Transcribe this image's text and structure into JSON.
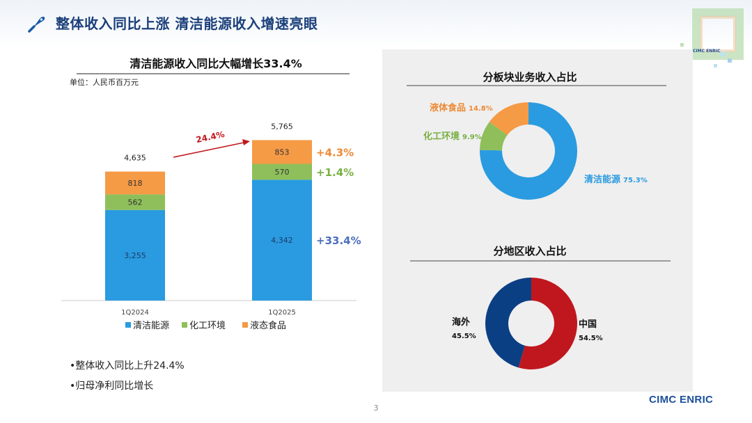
{
  "title": "整体收入同比上涨  清洁能源收入增速亮眼",
  "icons": {
    "title": "pen-nib-icon",
    "decoration": "abstract-square-decoration"
  },
  "colors": {
    "clean_energy": "#2a9be0",
    "chemical": "#8fbf5a",
    "liquid_food": "#f59a45",
    "china": "#c0171e",
    "overseas": "#0b3f84",
    "title": "#1b3f7a",
    "growth_blue": "#4a6fbe"
  },
  "decoration_text": "CIMC ENRIC",
  "bar_chart": {
    "title": "清洁能源收入同比大幅增长33.4%",
    "unit": "单位：人民币百万元",
    "growth_label": "24.4%",
    "chart_data": {
      "type": "stacked-bar",
      "categories": [
        "1Q2024",
        "1Q2025"
      ],
      "totals": [
        "4,635",
        "5,765"
      ],
      "series": [
        {
          "name": "清洁能源",
          "color": "#2a9be0",
          "values": [
            3255,
            4342
          ],
          "labels": [
            "3,255",
            "4,342"
          ],
          "growth": "+33.4%",
          "growth_color": "#4a6fbe"
        },
        {
          "name": "化工环境",
          "color": "#8fbf5a",
          "values": [
            562,
            570
          ],
          "labels": [
            "562",
            "570"
          ],
          "growth": "+1.4%",
          "growth_color": "#79b043"
        },
        {
          "name": "液态食品",
          "color": "#f59a45",
          "values": [
            818,
            853
          ],
          "labels": [
            "818",
            "853"
          ],
          "growth": "+4.3%",
          "growth_color": "#ed8a35"
        }
      ],
      "legend_position": "bottom"
    }
  },
  "bullets": [
    "•整体收入同比上升24.4%",
    "•归母净利同比增长"
  ],
  "segment_chart": {
    "title": "分板块业务收入占比",
    "chart_data": {
      "type": "donut",
      "slices": [
        {
          "name": "清洁能源",
          "value": 75.3,
          "label": "75.3%",
          "color": "#2a9be0"
        },
        {
          "name": "化工环境",
          "value": 9.9,
          "label": "9.9%",
          "color": "#8fbf5a"
        },
        {
          "name": "液体食品",
          "value": 14.8,
          "label": "14.8%",
          "color": "#f59a45"
        }
      ]
    }
  },
  "region_chart": {
    "title": "分地区收入占比",
    "chart_data": {
      "type": "donut",
      "slices": [
        {
          "name": "中国",
          "value": 54.5,
          "label": "54.5%",
          "color": "#c0171e"
        },
        {
          "name": "海外",
          "value": 45.5,
          "label": "45.5%",
          "color": "#0b3f84"
        }
      ]
    }
  },
  "page_number": "3",
  "logo": "CIMC ENRIC"
}
